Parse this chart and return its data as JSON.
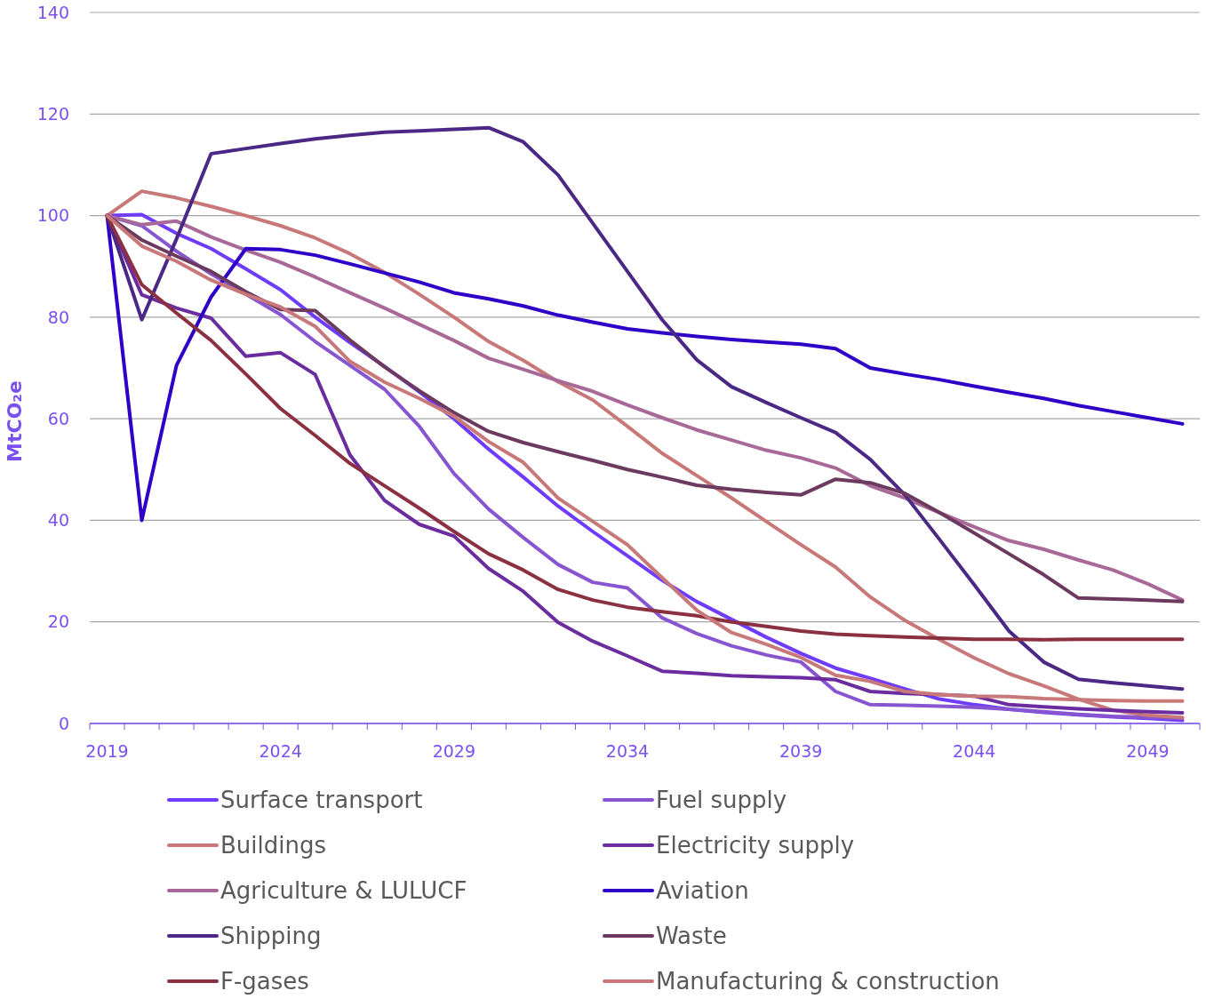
{
  "chart_data": {
    "type": "line",
    "ylabel": "MtCO₂e",
    "categories": [
      "2019",
      null,
      null,
      null,
      null,
      "2024",
      null,
      null,
      null,
      null,
      "2029",
      null,
      null,
      null,
      null,
      "2034",
      null,
      null,
      null,
      null,
      "2039",
      null,
      null,
      null,
      null,
      "2044",
      null,
      null,
      null,
      null,
      "2049",
      null
    ],
    "ylim": [
      0,
      140
    ],
    "yticks": [
      0,
      20,
      40,
      60,
      80,
      100,
      120,
      140
    ],
    "grid": "y",
    "legend": "bottom",
    "marker": "none",
    "line_style": "solid",
    "series": [
      {
        "name": "Surface transport",
        "color": "#6e3cff",
        "values": [
          100,
          100.2,
          96.5,
          93.5,
          89.5,
          85.4,
          80,
          75,
          70.3,
          65.3,
          60,
          54,
          48.5,
          42.8,
          37.8,
          33,
          28.2,
          24,
          20.5,
          17,
          13.8,
          10.9,
          8.9,
          6.8,
          4.8,
          3.7,
          2.8,
          2.2,
          1.7,
          1.3,
          1,
          0.6
        ]
      },
      {
        "name": "Fuel supply",
        "color": "#8855d0",
        "values": [
          100,
          98,
          93,
          88.5,
          84.5,
          80.5,
          75.2,
          70.5,
          65.8,
          58.5,
          49.2,
          42.2,
          36.6,
          31.3,
          27.8,
          26.7,
          20.8,
          17.7,
          15.3,
          13.5,
          12.1,
          6.3,
          3.7,
          3.6,
          3.4,
          3.2,
          2.8,
          2.3,
          1.8,
          1.4,
          1.2,
          1
        ]
      },
      {
        "name": "Buildings",
        "color": "#c87878",
        "values": [
          100,
          104.8,
          103.5,
          101.8,
          100,
          98,
          95.6,
          92.5,
          88.8,
          84.5,
          80,
          75.2,
          71.5,
          67.3,
          63.7,
          58.5,
          53.2,
          48.8,
          44.4,
          39.8,
          35.2,
          30.8,
          24.9,
          20.3,
          16.5,
          12.9,
          9.8,
          7.4,
          4.8,
          2.6,
          1.6,
          1.2
        ]
      },
      {
        "name": "Electricity supply",
        "color": "#6a2c9e",
        "values": [
          100,
          84.4,
          81.8,
          79.8,
          72.3,
          73,
          68.7,
          52.9,
          43.9,
          39.2,
          36.9,
          30.5,
          26,
          19.9,
          16.2,
          13.3,
          10.3,
          9.9,
          9.4,
          9.2,
          9,
          8.6,
          6.3,
          5.9,
          5.7,
          5.4,
          3.7,
          3.3,
          2.9,
          2.6,
          2.3,
          2.1
        ]
      },
      {
        "name": "Agriculture & LULUCF",
        "color": "#a86898",
        "values": [
          100,
          98.2,
          98.9,
          95.8,
          93.2,
          90.8,
          87.9,
          84.8,
          81.8,
          78.6,
          75.4,
          71.9,
          69.7,
          67.5,
          65.4,
          62.7,
          60.2,
          57.8,
          55.8,
          53.8,
          52.3,
          50.3,
          46.8,
          44.4,
          41.5,
          38.7,
          36,
          34.3,
          32.2,
          30.2,
          27.5,
          24.3
        ]
      },
      {
        "name": "Aviation",
        "color": "#2e00c8",
        "values": [
          100,
          40,
          70.5,
          84,
          93.5,
          93.3,
          92.2,
          90.5,
          88.7,
          86.9,
          84.8,
          83.6,
          82.2,
          80.4,
          79,
          77.7,
          76.9,
          76.2,
          75.6,
          75.1,
          74.7,
          73.8,
          70,
          68.8,
          67.7,
          66.4,
          65.2,
          64,
          62.6,
          61.4,
          60.2,
          59
        ]
      },
      {
        "name": "Shipping",
        "color": "#4b2885",
        "values": [
          100,
          79.5,
          95.4,
          112.2,
          113.2,
          114.2,
          115.1,
          115.8,
          116.4,
          116.7,
          117,
          117.3,
          114.5,
          108,
          98.5,
          89,
          79.5,
          71.6,
          66.3,
          63.2,
          60.2,
          57.3,
          52,
          45,
          36.2,
          27.3,
          18.2,
          12.1,
          8.7,
          8,
          7.4,
          6.8
        ]
      },
      {
        "name": "Waste",
        "color": "#6b3a5e",
        "values": [
          100,
          95.2,
          92,
          89,
          85,
          81.5,
          81.3,
          75.5,
          70.2,
          65.5,
          61.2,
          57.5,
          55.3,
          53.5,
          51.8,
          50,
          48.5,
          46.9,
          46.1,
          45.5,
          45,
          48.1,
          47.4,
          45.3,
          41.5,
          37.5,
          33.4,
          29.3,
          24.7,
          24.5,
          24.3,
          24
        ]
      },
      {
        "name": "F-gases",
        "color": "#8b3040",
        "values": [
          100,
          86.4,
          80.8,
          75.4,
          68.8,
          62,
          56.7,
          51.2,
          46.8,
          42.4,
          37.8,
          33.4,
          30.2,
          26.4,
          24.3,
          22.9,
          22,
          21.2,
          20,
          19.1,
          18.2,
          17.6,
          17.3,
          17,
          16.8,
          16.6,
          16.6,
          16.5,
          16.6,
          16.6,
          16.6,
          16.6
        ]
      },
      {
        "name": "Manufacturing & construction",
        "color": "#c87878",
        "values": [
          100,
          94,
          91,
          87.3,
          84.5,
          82,
          78.2,
          71.3,
          67.2,
          64,
          60.5,
          55.5,
          51.4,
          44.4,
          39.8,
          35.2,
          28.7,
          22.3,
          17.9,
          15.6,
          13,
          9.5,
          8.3,
          6.3,
          5.7,
          5.4,
          5.3,
          4.9,
          4.7,
          4.5,
          4.4,
          4.4
        ]
      }
    ]
  }
}
